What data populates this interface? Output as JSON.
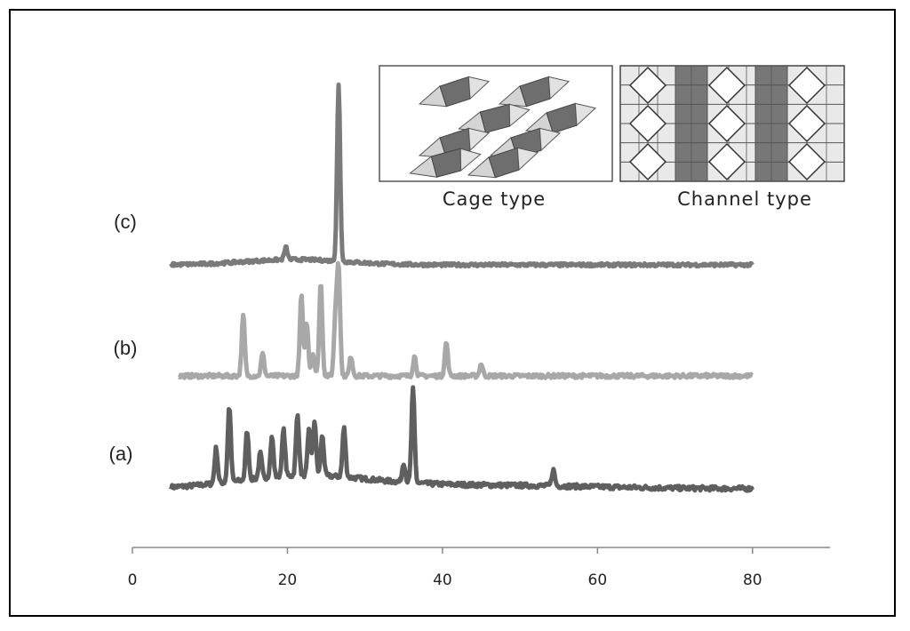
{
  "chart_data": {
    "type": "line",
    "title": "",
    "xlabel": "",
    "ylabel": "",
    "xlim": [
      0,
      90
    ],
    "x_ticks": [
      0,
      20,
      40,
      60,
      80
    ],
    "grid": false,
    "legend": "none",
    "series": [
      {
        "name": "(a)",
        "color": "#5f5f5f",
        "x_range": [
          5,
          80
        ],
        "baseline": 0,
        "peaks": [
          {
            "x": 10.8,
            "y": 40
          },
          {
            "x": 12.5,
            "y": 85
          },
          {
            "x": 14.8,
            "y": 55
          },
          {
            "x": 16.5,
            "y": 28
          },
          {
            "x": 18.0,
            "y": 45
          },
          {
            "x": 19.5,
            "y": 52
          },
          {
            "x": 21.3,
            "y": 68
          },
          {
            "x": 22.8,
            "y": 52
          },
          {
            "x": 23.5,
            "y": 62
          },
          {
            "x": 24.5,
            "y": 45
          },
          {
            "x": 27.3,
            "y": 55
          },
          {
            "x": 35.0,
            "y": 22
          },
          {
            "x": 36.2,
            "y": 105
          },
          {
            "x": 54.3,
            "y": 18
          }
        ]
      },
      {
        "name": "(b)",
        "color": "#a8a8a8",
        "x_range": [
          6,
          80
        ],
        "baseline": 0,
        "peaks": [
          {
            "x": 14.3,
            "y": 68
          },
          {
            "x": 16.8,
            "y": 25
          },
          {
            "x": 21.8,
            "y": 90
          },
          {
            "x": 22.5,
            "y": 60
          },
          {
            "x": 23.3,
            "y": 25
          },
          {
            "x": 24.3,
            "y": 105
          },
          {
            "x": 26.2,
            "y": 65
          },
          {
            "x": 26.6,
            "y": 120
          },
          {
            "x": 28.2,
            "y": 22
          },
          {
            "x": 36.4,
            "y": 22
          },
          {
            "x": 40.5,
            "y": 38
          },
          {
            "x": 45.0,
            "y": 14
          }
        ]
      },
      {
        "name": "(c)",
        "color": "#7a7a7a",
        "x_range": [
          5,
          80
        ],
        "baseline": 0,
        "peaks": [
          {
            "x": 19.8,
            "y": 14
          },
          {
            "x": 26.6,
            "y": 198
          }
        ]
      }
    ]
  },
  "inset": {
    "cage_caption": "Cage type",
    "channel_caption": "Channel type"
  }
}
